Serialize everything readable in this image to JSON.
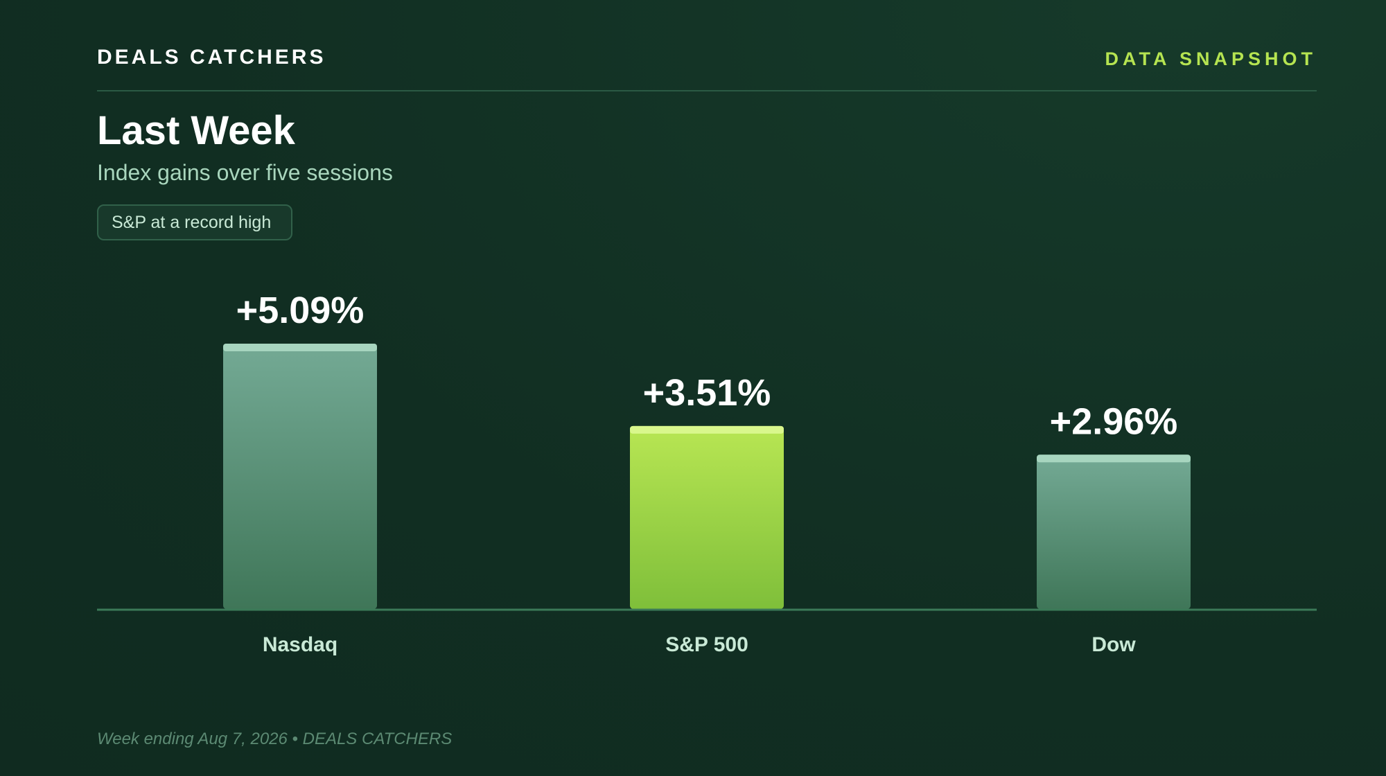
{
  "header": {
    "brand": "DEALS CATCHERS",
    "section": "DATA SNAPSHOT"
  },
  "title": "Last Week",
  "subtitle": "Index gains over five sessions",
  "badge": "S&P at a record high",
  "footer": "Week ending Aug 7, 2026 • DEALS CATCHERS",
  "colors": {
    "highlight": "#b6e451",
    "bar": "#6da48e",
    "background": "#112e22"
  },
  "chart_data": {
    "type": "bar",
    "categories": [
      "Nasdaq",
      "S&P 500",
      "Dow"
    ],
    "values": [
      5.09,
      3.51,
      2.96
    ],
    "value_labels": [
      "+5.09%",
      "+3.51%",
      "+2.96%"
    ],
    "highlighted_category": "S&P 500",
    "ylim": [
      0,
      5.09
    ],
    "grid": false,
    "legend": "none"
  }
}
